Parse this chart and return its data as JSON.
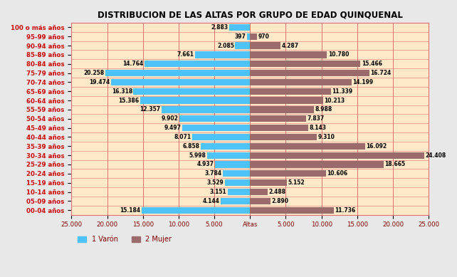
{
  "title": "DISTRIBUCION DE LAS ALTAS POR GRUPO DE EDAD QUINQUENAL",
  "age_groups": [
    "100 o más años",
    "95-99 años",
    "90-94 años",
    "85-89 años",
    "80-84 años",
    "75-79 años",
    "70-74 años",
    "65-69 años",
    "60-64 años",
    "55-59 años",
    "50-54 años",
    "45-49 años",
    "40-44 años",
    "35-39 años",
    "30-34 años",
    "25-29 años",
    "20-24 años",
    "15-19 años",
    "10-14 años",
    "05-09 años",
    "00-04 años"
  ],
  "varon": [
    2883,
    397,
    2085,
    7661,
    14764,
    20258,
    19474,
    16318,
    15386,
    12357,
    9902,
    9497,
    8071,
    6858,
    5998,
    4937,
    3784,
    3529,
    3151,
    4144,
    15184
  ],
  "mujer": [
    0,
    970,
    4287,
    10780,
    15466,
    16724,
    14199,
    11339,
    10213,
    8988,
    7837,
    8143,
    9310,
    16092,
    24408,
    18665,
    10606,
    5152,
    2488,
    2890,
    11736
  ],
  "bar_color_varon": "#4dc3f7",
  "bar_color_mujer": "#9b6b6b",
  "background_color": "#fde8c8",
  "fig_background_color": "#e8e8e8",
  "grid_color": "#e07070",
  "title_color": "#000000",
  "label_color": "#cc0000",
  "text_color": "#000000",
  "tick_label_color": "#800000",
  "xlim": 25000,
  "xlabel": "Altas",
  "legend_varon": "1 Varón",
  "legend_mujer": "2 Mujer"
}
